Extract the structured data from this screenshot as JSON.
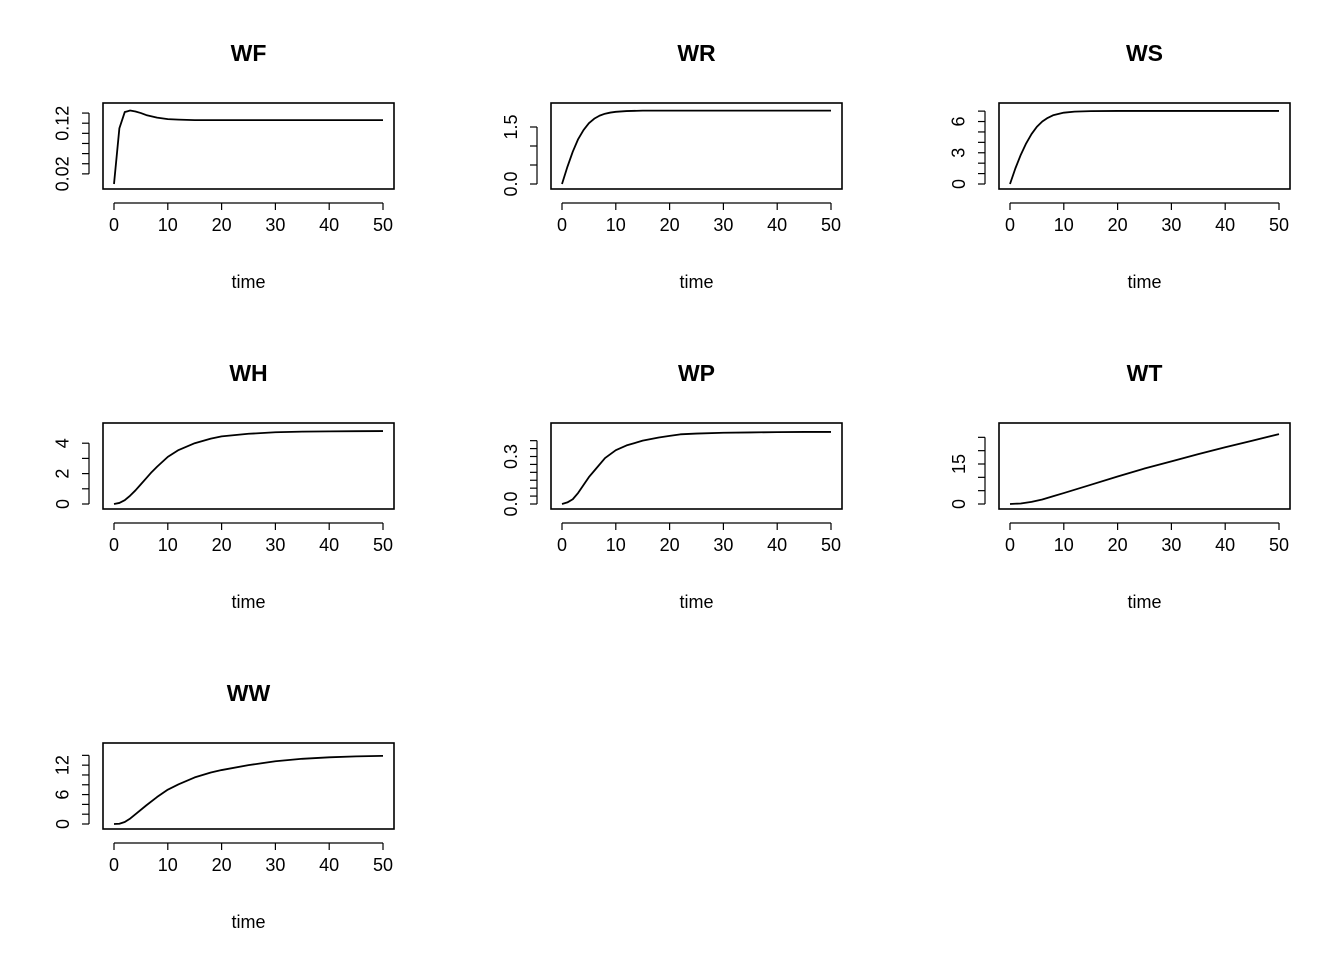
{
  "chart_data": [
    {
      "type": "line",
      "title": "WF",
      "xlabel": "time",
      "ylabel": "",
      "xlim": [
        0,
        50
      ],
      "ylim": [
        0,
        0.15
      ],
      "x_ticks": [
        0,
        10,
        20,
        30,
        40,
        50
      ],
      "y_ticks": [
        0.02,
        0.04,
        0.06,
        0.08,
        0.1,
        0.12,
        0.14
      ],
      "y_tick_labels": [
        "0.02",
        "",
        "",
        "0.12"
      ],
      "y_tick_labels_at": [
        0.02,
        0.06,
        0.1,
        0.12
      ],
      "series": [
        {
          "x": [
            0,
            1,
            2,
            3,
            4,
            5,
            6,
            8,
            10,
            12,
            15,
            20,
            25,
            30,
            35,
            40,
            45,
            50
          ],
          "y": [
            0.0,
            0.11,
            0.142,
            0.145,
            0.143,
            0.14,
            0.136,
            0.131,
            0.128,
            0.127,
            0.126,
            0.126,
            0.126,
            0.126,
            0.126,
            0.126,
            0.126,
            0.126
          ]
        }
      ]
    },
    {
      "type": "line",
      "title": "WR",
      "xlabel": "time",
      "ylabel": "",
      "xlim": [
        0,
        50
      ],
      "ylim": [
        0,
        2.0
      ],
      "x_ticks": [
        0,
        10,
        20,
        30,
        40,
        50
      ],
      "y_ticks": [
        0.0,
        0.5,
        1.0,
        1.5
      ],
      "y_tick_labels": [
        "0.0",
        "1.5"
      ],
      "y_tick_labels_at": [
        0.0,
        1.5
      ],
      "series": [
        {
          "x": [
            0,
            1,
            2,
            3,
            4,
            5,
            6,
            7,
            8,
            9,
            10,
            12,
            15,
            20,
            30,
            40,
            50
          ],
          "y": [
            0.0,
            0.45,
            0.85,
            1.18,
            1.42,
            1.6,
            1.72,
            1.8,
            1.85,
            1.88,
            1.9,
            1.92,
            1.93,
            1.93,
            1.93,
            1.93,
            1.93
          ]
        }
      ]
    },
    {
      "type": "line",
      "title": "WS",
      "xlabel": "time",
      "ylabel": "",
      "xlim": [
        0,
        50
      ],
      "ylim": [
        0,
        7.3
      ],
      "x_ticks": [
        0,
        10,
        20,
        30,
        40,
        50
      ],
      "y_ticks": [
        0,
        1,
        2,
        3,
        4,
        5,
        6,
        7
      ],
      "y_tick_labels": [
        "0",
        "3",
        "6"
      ],
      "y_tick_labels_at": [
        0,
        3,
        6
      ],
      "series": [
        {
          "x": [
            0,
            1,
            2,
            3,
            4,
            5,
            6,
            7,
            8,
            10,
            12,
            15,
            20,
            30,
            40,
            50
          ],
          "y": [
            0.0,
            1.5,
            2.8,
            3.9,
            4.8,
            5.5,
            6.0,
            6.35,
            6.6,
            6.85,
            6.95,
            7.0,
            7.02,
            7.02,
            7.02,
            7.02
          ]
        }
      ]
    },
    {
      "type": "line",
      "title": "WH",
      "xlabel": "time",
      "ylabel": "",
      "xlim": [
        0,
        50
      ],
      "ylim": [
        0,
        5.0
      ],
      "x_ticks": [
        0,
        10,
        20,
        30,
        40,
        50
      ],
      "y_ticks": [
        0,
        1,
        2,
        3,
        4
      ],
      "y_tick_labels": [
        "0",
        "2",
        "4"
      ],
      "y_tick_labels_at": [
        0,
        2,
        4
      ],
      "series": [
        {
          "x": [
            0,
            1,
            2,
            3,
            4,
            5,
            6,
            7,
            8,
            10,
            12,
            15,
            18,
            20,
            25,
            30,
            35,
            40,
            45,
            50
          ],
          "y": [
            0.0,
            0.07,
            0.25,
            0.55,
            0.9,
            1.3,
            1.7,
            2.1,
            2.45,
            3.1,
            3.55,
            4.0,
            4.3,
            4.45,
            4.62,
            4.72,
            4.76,
            4.78,
            4.79,
            4.8
          ]
        }
      ]
    },
    {
      "type": "line",
      "title": "WP",
      "xlabel": "time",
      "ylabel": "",
      "xlim": [
        0,
        50
      ],
      "ylim": [
        0,
        0.48
      ],
      "x_ticks": [
        0,
        10,
        20,
        30,
        40,
        50
      ],
      "y_ticks": [
        0.0,
        0.05,
        0.1,
        0.15,
        0.2,
        0.25,
        0.3,
        0.35,
        0.4
      ],
      "y_tick_labels": [
        "0.0",
        "0.3"
      ],
      "y_tick_labels_at": [
        0.0,
        0.3
      ],
      "series": [
        {
          "x": [
            0,
            1,
            2,
            3,
            4,
            5,
            6,
            8,
            10,
            12,
            15,
            18,
            20,
            22,
            25,
            30,
            35,
            40,
            45,
            50
          ],
          "y": [
            0.0,
            0.01,
            0.03,
            0.07,
            0.12,
            0.17,
            0.21,
            0.29,
            0.34,
            0.37,
            0.4,
            0.42,
            0.43,
            0.44,
            0.445,
            0.45,
            0.452,
            0.454,
            0.455,
            0.455
          ]
        }
      ]
    },
    {
      "type": "line",
      "title": "WT",
      "xlabel": "time",
      "ylabel": "",
      "xlim": [
        0,
        50
      ],
      "ylim": [
        0,
        28.5
      ],
      "x_ticks": [
        0,
        10,
        20,
        30,
        40,
        50
      ],
      "y_ticks": [
        0,
        5,
        10,
        15,
        20,
        25
      ],
      "y_tick_labels": [
        "0",
        "15"
      ],
      "y_tick_labels_at": [
        0,
        15
      ],
      "series": [
        {
          "x": [
            0,
            2,
            4,
            6,
            8,
            10,
            15,
            20,
            25,
            30,
            35,
            40,
            45,
            50
          ],
          "y": [
            0.0,
            0.2,
            0.8,
            1.7,
            2.9,
            4.1,
            7.2,
            10.3,
            13.3,
            16.0,
            18.7,
            21.3,
            23.7,
            26.2
          ]
        }
      ]
    },
    {
      "type": "line",
      "title": "WW",
      "xlabel": "time",
      "ylabel": "",
      "xlim": [
        0,
        50
      ],
      "ylim": [
        0,
        15.5
      ],
      "x_ticks": [
        0,
        10,
        20,
        30,
        40,
        50
      ],
      "y_ticks": [
        0,
        2,
        4,
        6,
        8,
        10,
        12,
        14
      ],
      "y_tick_labels": [
        "0",
        "6",
        "12"
      ],
      "y_tick_labels_at": [
        0,
        6,
        12
      ],
      "series": [
        {
          "x": [
            0,
            1,
            2,
            3,
            4,
            6,
            8,
            10,
            12,
            15,
            18,
            20,
            25,
            30,
            35,
            40,
            45,
            50
          ],
          "y": [
            0.0,
            0.05,
            0.4,
            1.1,
            2.0,
            3.8,
            5.5,
            7.0,
            8.1,
            9.5,
            10.5,
            11.0,
            12.0,
            12.8,
            13.3,
            13.6,
            13.8,
            13.9
          ]
        }
      ]
    }
  ]
}
